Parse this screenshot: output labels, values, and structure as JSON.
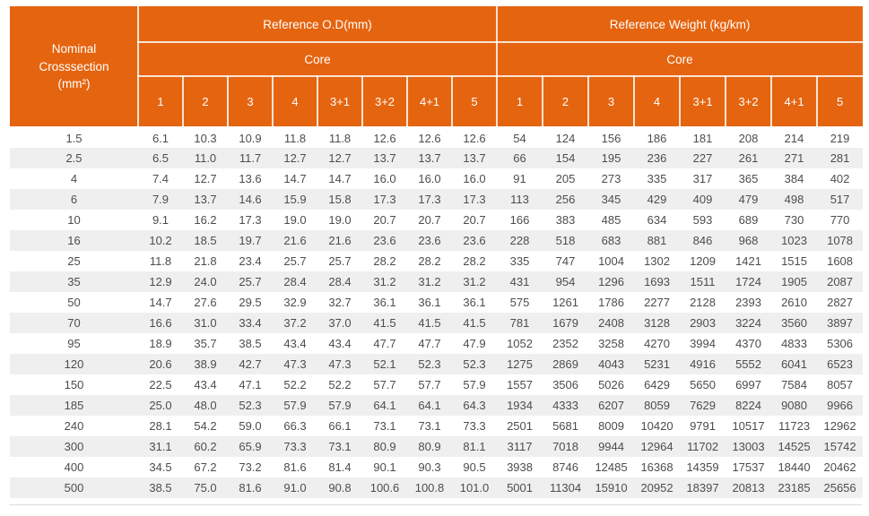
{
  "colors": {
    "header_bg": "#E5640F",
    "header_grid": "rgba(255,255,255,0.82)",
    "row_stripe": "#EFEFEF",
    "body_text": "#4D4D4D",
    "bottom_rule": "#DCDCDC"
  },
  "table": {
    "corner": {
      "line1": "Nominal",
      "line2": "Crosssection",
      "line3": "(mm²)"
    },
    "groups": [
      {
        "title": "Reference O.D(mm)",
        "core_label": "Core"
      },
      {
        "title": "Reference Weight (kg/km)",
        "core_label": "Core"
      }
    ],
    "core_columns": [
      "1",
      "2",
      "3",
      "4",
      "3+1",
      "3+2",
      "4+1",
      "5"
    ],
    "rows": [
      {
        "nominal": "1.5",
        "od": [
          "6.1",
          "10.3",
          "10.9",
          "11.8",
          "11.8",
          "12.6",
          "12.6",
          "12.6"
        ],
        "weight": [
          "54",
          "124",
          "156",
          "186",
          "181",
          "208",
          "214",
          "219"
        ]
      },
      {
        "nominal": "2.5",
        "od": [
          "6.5",
          "11.0",
          "11.7",
          "12.7",
          "12.7",
          "13.7",
          "13.7",
          "13.7"
        ],
        "weight": [
          "66",
          "154",
          "195",
          "236",
          "227",
          "261",
          "271",
          "281"
        ]
      },
      {
        "nominal": "4",
        "od": [
          "7.4",
          "12.7",
          "13.6",
          "14.7",
          "14.7",
          "16.0",
          "16.0",
          "16.0"
        ],
        "weight": [
          "91",
          "205",
          "273",
          "335",
          "317",
          "365",
          "384",
          "402"
        ]
      },
      {
        "nominal": "6",
        "od": [
          "7.9",
          "13.7",
          "14.6",
          "15.9",
          "15.8",
          "17.3",
          "17.3",
          "17.3"
        ],
        "weight": [
          "113",
          "256",
          "345",
          "429",
          "409",
          "479",
          "498",
          "517"
        ]
      },
      {
        "nominal": "10",
        "od": [
          "9.1",
          "16.2",
          "17.3",
          "19.0",
          "19.0",
          "20.7",
          "20.7",
          "20.7"
        ],
        "weight": [
          "166",
          "383",
          "485",
          "634",
          "593",
          "689",
          "730",
          "770"
        ]
      },
      {
        "nominal": "16",
        "od": [
          "10.2",
          "18.5",
          "19.7",
          "21.6",
          "21.6",
          "23.6",
          "23.6",
          "23.6"
        ],
        "weight": [
          "228",
          "518",
          "683",
          "881",
          "846",
          "968",
          "1023",
          "1078"
        ]
      },
      {
        "nominal": "25",
        "od": [
          "11.8",
          "21.8",
          "23.4",
          "25.7",
          "25.7",
          "28.2",
          "28.2",
          "28.2"
        ],
        "weight": [
          "335",
          "747",
          "1004",
          "1302",
          "1209",
          "1421",
          "1515",
          "1608"
        ]
      },
      {
        "nominal": "35",
        "od": [
          "12.9",
          "24.0",
          "25.7",
          "28.4",
          "28.4",
          "31.2",
          "31.2",
          "31.2"
        ],
        "weight": [
          "431",
          "954",
          "1296",
          "1693",
          "1511",
          "1724",
          "1905",
          "2087"
        ]
      },
      {
        "nominal": "50",
        "od": [
          "14.7",
          "27.6",
          "29.5",
          "32.9",
          "32.7",
          "36.1",
          "36.1",
          "36.1"
        ],
        "weight": [
          "575",
          "1261",
          "1786",
          "2277",
          "2128",
          "2393",
          "2610",
          "2827"
        ]
      },
      {
        "nominal": "70",
        "od": [
          "16.6",
          "31.0",
          "33.4",
          "37.2",
          "37.0",
          "41.5",
          "41.5",
          "41.5"
        ],
        "weight": [
          "781",
          "1679",
          "2408",
          "3128",
          "2903",
          "3224",
          "3560",
          "3897"
        ]
      },
      {
        "nominal": "95",
        "od": [
          "18.9",
          "35.7",
          "38.5",
          "43.4",
          "43.4",
          "47.7",
          "47.7",
          "47.9"
        ],
        "weight": [
          "1052",
          "2352",
          "3258",
          "4270",
          "3994",
          "4370",
          "4833",
          "5306"
        ]
      },
      {
        "nominal": "120",
        "od": [
          "20.6",
          "38.9",
          "42.7",
          "47.3",
          "47.3",
          "52.1",
          "52.3",
          "52.3"
        ],
        "weight": [
          "1275",
          "2869",
          "4043",
          "5231",
          "4916",
          "5552",
          "6041",
          "6523"
        ]
      },
      {
        "nominal": "150",
        "od": [
          "22.5",
          "43.4",
          "47.1",
          "52.2",
          "52.2",
          "57.7",
          "57.7",
          "57.9"
        ],
        "weight": [
          "1557",
          "3506",
          "5026",
          "6429",
          "5650",
          "6997",
          "7584",
          "8057"
        ]
      },
      {
        "nominal": "185",
        "od": [
          "25.0",
          "48.0",
          "52.3",
          "57.9",
          "57.9",
          "64.1",
          "64.1",
          "64.3"
        ],
        "weight": [
          "1934",
          "4333",
          "6207",
          "8059",
          "7629",
          "8224",
          "9080",
          "9966"
        ]
      },
      {
        "nominal": "240",
        "od": [
          "28.1",
          "54.2",
          "59.0",
          "66.3",
          "66.1",
          "73.1",
          "73.1",
          "73.3"
        ],
        "weight": [
          "2501",
          "5681",
          "8009",
          "10420",
          "9791",
          "10517",
          "11723",
          "12962"
        ]
      },
      {
        "nominal": "300",
        "od": [
          "31.1",
          "60.2",
          "65.9",
          "73.3",
          "73.1",
          "80.9",
          "80.9",
          "81.1"
        ],
        "weight": [
          "3117",
          "7018",
          "9944",
          "12964",
          "11702",
          "13003",
          "14525",
          "15742"
        ]
      },
      {
        "nominal": "400",
        "od": [
          "34.5",
          "67.2",
          "73.2",
          "81.6",
          "81.4",
          "90.1",
          "90.3",
          "90.5"
        ],
        "weight": [
          "3938",
          "8746",
          "12485",
          "16368",
          "14359",
          "17537",
          "18440",
          "20462"
        ]
      },
      {
        "nominal": "500",
        "od": [
          "38.5",
          "75.0",
          "81.6",
          "91.0",
          "90.8",
          "100.6",
          "100.8",
          "101.0"
        ],
        "weight": [
          "5001",
          "11304",
          "15910",
          "20952",
          "18397",
          "20813",
          "23185",
          "25656"
        ]
      }
    ]
  }
}
